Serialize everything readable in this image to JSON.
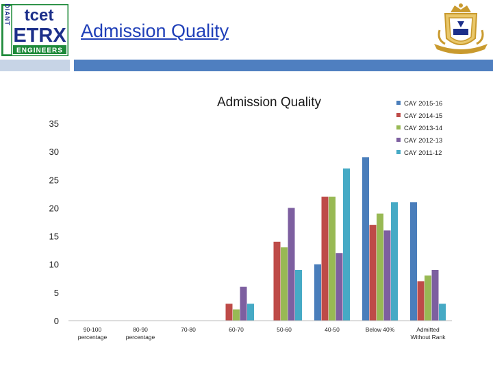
{
  "header": {
    "title": "Admission Quality",
    "logo_left": {
      "icon": "tcet-etrx-logo-icon",
      "tcet_text": "tcet",
      "etrx_text": "ETRX",
      "engineers_text": "ENGINEERS",
      "radiant_text": "RADIANT",
      "colors": {
        "green": "#1e8a3a",
        "blue": "#1c2f8a"
      }
    },
    "logo_right": {
      "icon": "tcet-crest-logo-icon",
      "colors": {
        "gold": "#c99a2e",
        "blue": "#1c2f8a"
      }
    },
    "rule_colors": {
      "left": "#c7d4e6",
      "main": "#4f7fc0"
    }
  },
  "chart_data": {
    "type": "bar",
    "title": "Admission Quality",
    "xlabel": "",
    "ylabel": "",
    "ylim": [
      0,
      35
    ],
    "yticks": [
      0,
      5,
      10,
      15,
      20,
      25,
      30,
      35
    ],
    "grid": false,
    "legend_position": "top-right",
    "categories": [
      "90-100 percentage",
      "80-90 percentage",
      "70-80",
      "60-70",
      "50-60",
      "40-50",
      "Below 40%",
      "Admitted Without Rank"
    ],
    "category_lines": [
      [
        "90-100",
        "percentage"
      ],
      [
        "80-90",
        "percentage"
      ],
      [
        "70-80"
      ],
      [
        "60-70"
      ],
      [
        "50-60"
      ],
      [
        "40-50"
      ],
      [
        "Below 40%"
      ],
      [
        "Admitted",
        "Without Rank"
      ]
    ],
    "series": [
      {
        "name": "CAY 2015-16",
        "color": "#4a7ebb",
        "values": [
          0,
          0,
          0,
          0,
          0,
          10,
          29,
          21
        ]
      },
      {
        "name": "CAY 2014-15",
        "color": "#be4b48",
        "values": [
          0,
          0,
          0,
          3,
          14,
          22,
          17,
          7
        ]
      },
      {
        "name": "CAY 2013-14",
        "color": "#98b954",
        "values": [
          0,
          0,
          0,
          2,
          13,
          22,
          19,
          8
        ]
      },
      {
        "name": "CAY 2012-13",
        "color": "#7d5fa0",
        "values": [
          0,
          0,
          0,
          6,
          20,
          12,
          16,
          9
        ]
      },
      {
        "name": "CAY 2011-12",
        "color": "#46aac5",
        "values": [
          0,
          0,
          0,
          3,
          9,
          27,
          21,
          3
        ]
      }
    ]
  }
}
